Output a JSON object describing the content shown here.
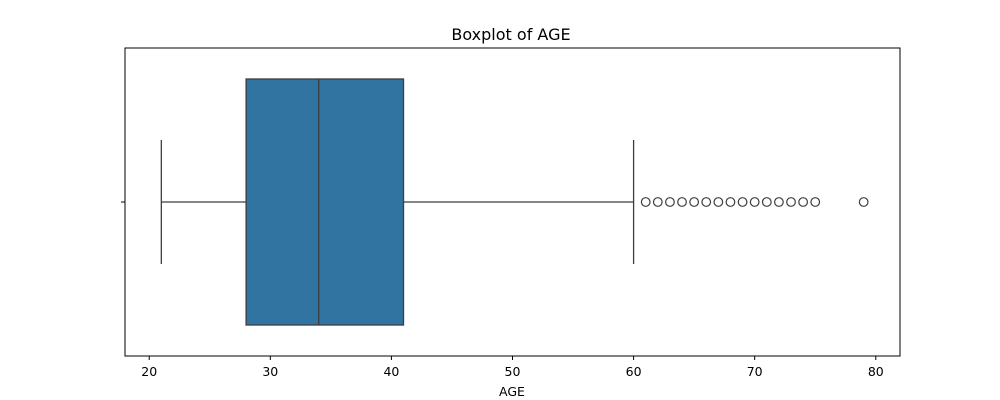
{
  "chart_data": {
    "type": "box",
    "title": "Boxplot of AGE",
    "xlabel": "AGE",
    "ylabel": "",
    "xlim": [
      18,
      82
    ],
    "x_ticks": [
      20,
      30,
      40,
      50,
      60,
      70,
      80
    ],
    "orientation": "horizontal",
    "grid": false,
    "box_color": "#3274a1",
    "line_color": "#3d3d3d",
    "stats": {
      "whisker_low": 21,
      "q1": 28,
      "median": 34,
      "q3": 41,
      "whisker_high": 60
    },
    "outliers": [
      61,
      62,
      63,
      64,
      65,
      66,
      67,
      68,
      69,
      70,
      71,
      72,
      73,
      74,
      75,
      79
    ]
  }
}
